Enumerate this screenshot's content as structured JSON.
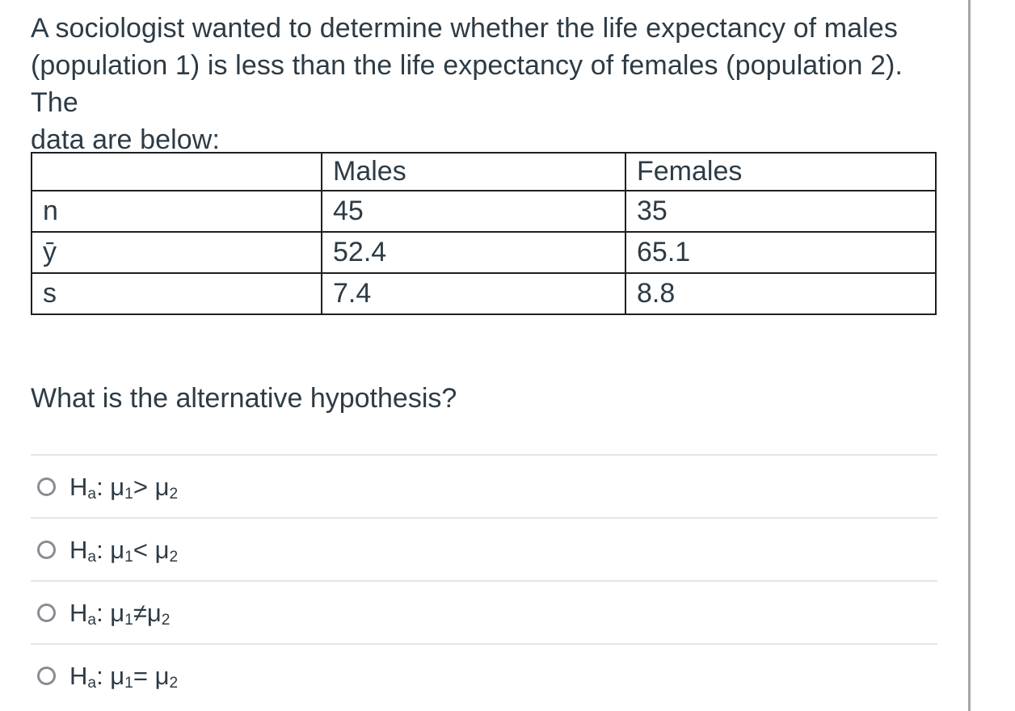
{
  "question": {
    "lines": [
      "A sociologist wanted to determine whether the life expectancy of males",
      "(population 1) is less than the life expectancy of females (population 2). The",
      "data are below:"
    ]
  },
  "table": {
    "headers": [
      "",
      "Males",
      "Females"
    ],
    "rows": [
      {
        "label": "n",
        "males": "45",
        "females": "35"
      },
      {
        "label": "ȳ",
        "males": "52.4",
        "females": "65.1"
      },
      {
        "label": "s",
        "males": "7.4",
        "females": "8.8"
      }
    ]
  },
  "prompt": "What is the alternative hypothesis?",
  "options": [
    {
      "selected": false,
      "parts": [
        {
          "t": "H"
        },
        {
          "s": "a"
        },
        {
          "t": ": μ"
        },
        {
          "s": "1"
        },
        {
          "t": "> μ"
        },
        {
          "s": "2"
        }
      ]
    },
    {
      "selected": false,
      "parts": [
        {
          "t": "H"
        },
        {
          "s": "a"
        },
        {
          "t": ": μ"
        },
        {
          "s": "1"
        },
        {
          "t": "< μ"
        },
        {
          "s": "2"
        }
      ]
    },
    {
      "selected": false,
      "parts": [
        {
          "t": "H"
        },
        {
          "s": "a"
        },
        {
          "t": ": μ"
        },
        {
          "s": "1"
        },
        {
          "t": "≠μ"
        },
        {
          "s": "2"
        }
      ]
    },
    {
      "selected": false,
      "parts": [
        {
          "t": "H"
        },
        {
          "s": "a"
        },
        {
          "t": ": μ"
        },
        {
          "s": "1"
        },
        {
          "t": "= μ"
        },
        {
          "s": "2"
        }
      ]
    }
  ],
  "colors": {
    "text": "#2d3b45",
    "table_border": "#1f1f1f",
    "option_divider": "#e5e5e5",
    "radio_outline": "#8b8b94",
    "right_border_line": "#a6a6a6"
  }
}
